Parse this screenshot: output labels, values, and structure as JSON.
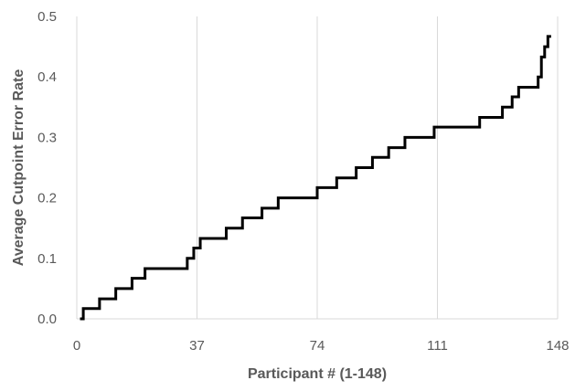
{
  "chart_data": {
    "type": "line",
    "title": "",
    "xlabel": "Participant # (1-148)",
    "ylabel": "Average Cutpoint Error Rate",
    "xlim": [
      0,
      148
    ],
    "ylim": [
      0,
      0.5
    ],
    "xticks": [
      0,
      37,
      74,
      111,
      148
    ],
    "xtick_labels": [
      "0",
      "37",
      "74",
      "111",
      "148"
    ],
    "yticks": [
      0,
      0.1,
      0.2,
      0.3,
      0.4,
      0.5
    ],
    "ytick_labels": [
      "0.0",
      "0.1",
      "0.2",
      "0.3",
      "0.4",
      "0.5"
    ],
    "grid": {
      "x": true,
      "y": false
    },
    "line_color": "#000000",
    "grid_color": "#d9d9d9",
    "text_color": "#595959",
    "series": [
      {
        "x": [
          1,
          2,
          7,
          12,
          17,
          21,
          25,
          34,
          36,
          38,
          41,
          46,
          51,
          57,
          62,
          68,
          74,
          80,
          86,
          91,
          96,
          101,
          106,
          110,
          117,
          124,
          131,
          134,
          136,
          138,
          142,
          143,
          144,
          145,
          146
        ],
        "values": [
          0.0,
          0.017,
          0.033,
          0.05,
          0.067,
          0.083,
          0.083,
          0.1,
          0.117,
          0.133,
          0.133,
          0.15,
          0.167,
          0.183,
          0.2,
          0.2,
          0.217,
          0.233,
          0.25,
          0.267,
          0.283,
          0.3,
          0.3,
          0.317,
          0.317,
          0.333,
          0.35,
          0.367,
          0.383,
          0.383,
          0.4,
          0.433,
          0.45,
          0.467,
          0.467
        ]
      }
    ]
  }
}
